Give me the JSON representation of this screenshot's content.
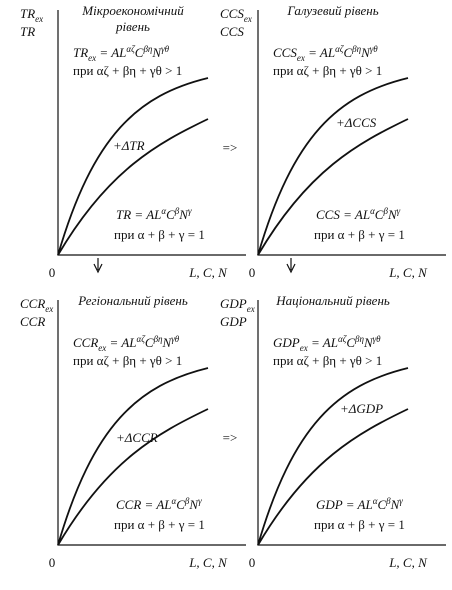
{
  "panels": [
    {
      "y_label_top": [
        {
          "text": "TR"
        },
        {
          "text": "ex",
          "pos": "sub"
        }
      ],
      "y_label_bottom": "TR",
      "title": [
        "Мікроекономічний",
        "рівень"
      ],
      "formula_top": [
        {
          "text": "TR"
        },
        {
          "text": "ex",
          "pos": "sub"
        },
        {
          "text": " = AL"
        },
        {
          "text": "αζ",
          "pos": "sup"
        },
        {
          "text": "C"
        },
        {
          "text": "βη",
          "pos": "sup"
        },
        {
          "text": "N"
        },
        {
          "text": "γθ",
          "pos": "sup"
        }
      ],
      "condition_top": "при αζ + βη + γθ > 1",
      "delta": "+ΔTR",
      "formula_bottom": [
        {
          "text": "TR = AL"
        },
        {
          "text": "α",
          "pos": "sup"
        },
        {
          "text": "C"
        },
        {
          "text": "β",
          "pos": "sup"
        },
        {
          "text": "N"
        },
        {
          "text": "γ",
          "pos": "sup"
        }
      ],
      "condition_bottom": "при α + β + γ = 1",
      "origin": "0",
      "x_label": "L, C, N"
    },
    {
      "y_label_top": [
        {
          "text": "CCS"
        },
        {
          "text": "ex",
          "pos": "sub"
        }
      ],
      "y_label_bottom": "CCS",
      "title": [
        "Галузевий рівень"
      ],
      "formula_top": [
        {
          "text": "CCS"
        },
        {
          "text": "ex",
          "pos": "sub"
        },
        {
          "text": " = AL"
        },
        {
          "text": "αζ",
          "pos": "sup"
        },
        {
          "text": "C"
        },
        {
          "text": "βη",
          "pos": "sup"
        },
        {
          "text": "N"
        },
        {
          "text": "γθ",
          "pos": "sup"
        }
      ],
      "condition_top": "при αζ + βη + γθ > 1",
      "delta": "+ΔCCS",
      "formula_bottom": [
        {
          "text": "CCS = AL"
        },
        {
          "text": "α",
          "pos": "sup"
        },
        {
          "text": "C"
        },
        {
          "text": "β",
          "pos": "sup"
        },
        {
          "text": "N"
        },
        {
          "text": "γ",
          "pos": "sup"
        }
      ],
      "condition_bottom": "при α + β + γ = 1",
      "origin": "0",
      "x_label": "L, C, N"
    },
    {
      "y_label_top": [
        {
          "text": "CCR"
        },
        {
          "text": "ex",
          "pos": "sub"
        }
      ],
      "y_label_bottom": "CCR",
      "title": [
        "Регіональний рівень"
      ],
      "formula_top": [
        {
          "text": "CCR"
        },
        {
          "text": "ex",
          "pos": "sub"
        },
        {
          "text": " = AL"
        },
        {
          "text": "αζ",
          "pos": "sup"
        },
        {
          "text": "C"
        },
        {
          "text": "βη",
          "pos": "sup"
        },
        {
          "text": "N"
        },
        {
          "text": "γθ",
          "pos": "sup"
        }
      ],
      "condition_top": "при αζ + βη + γθ > 1",
      "delta": "+ΔCCR",
      "formula_bottom": [
        {
          "text": "CCR = AL"
        },
        {
          "text": "α",
          "pos": "sup"
        },
        {
          "text": "C"
        },
        {
          "text": "β",
          "pos": "sup"
        },
        {
          "text": "N"
        },
        {
          "text": "γ",
          "pos": "sup"
        }
      ],
      "condition_bottom": "при α + β + γ = 1",
      "origin": "0",
      "x_label": "L, C, N"
    },
    {
      "y_label_top": [
        {
          "text": "GDP"
        },
        {
          "text": "ex",
          "pos": "sub"
        }
      ],
      "y_label_bottom": "GDP",
      "title": [
        "Національний рівень"
      ],
      "formula_top": [
        {
          "text": "GDP"
        },
        {
          "text": "ex",
          "pos": "sub"
        },
        {
          "text": " = AL"
        },
        {
          "text": "αζ",
          "pos": "sup"
        },
        {
          "text": "C"
        },
        {
          "text": "βη",
          "pos": "sup"
        },
        {
          "text": "N"
        },
        {
          "text": "γθ",
          "pos": "sup"
        }
      ],
      "condition_top": "при αζ + βη + γθ > 1",
      "delta": "+ΔGDP",
      "formula_bottom": [
        {
          "text": "GDP = AL"
        },
        {
          "text": "α",
          "pos": "sup"
        },
        {
          "text": "C"
        },
        {
          "text": "β",
          "pos": "sup"
        },
        {
          "text": "N"
        },
        {
          "text": "γ",
          "pos": "sup"
        }
      ],
      "condition_bottom": "при α + β + γ = 1",
      "origin": "0",
      "x_label": "L, C, N"
    }
  ],
  "arrows": [
    "=>",
    "=>"
  ]
}
